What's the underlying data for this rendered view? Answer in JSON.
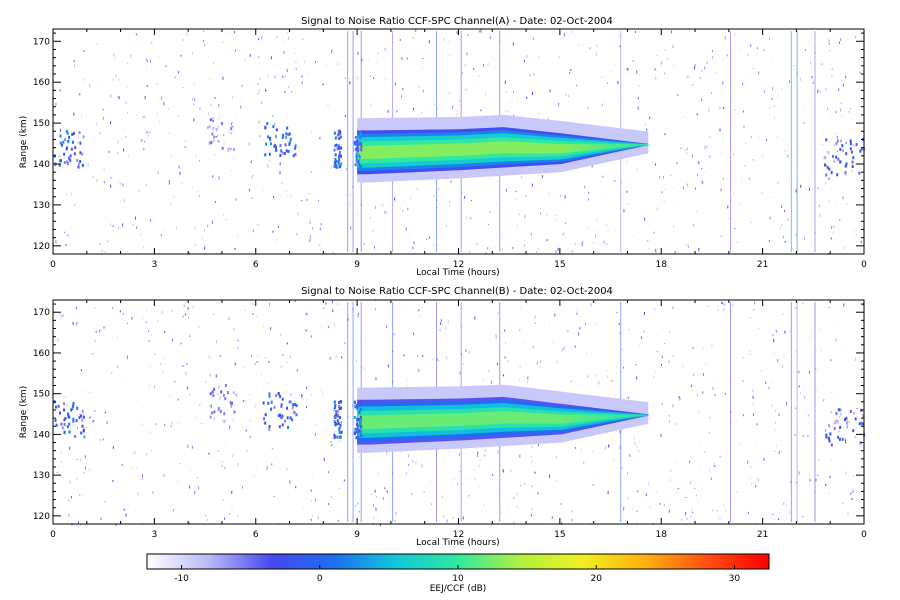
{
  "chart_data": [
    {
      "type": "heatmap",
      "title": "Signal to Noise Ratio CCF-SPC Channel(A) - Date: 02-Oct-2004",
      "xlabel": "Local Time (hours)",
      "ylabel": "Range (km)",
      "xlim": [
        0,
        24
      ],
      "ylim": [
        118,
        173
      ],
      "x_ticks": [
        "0",
        "3",
        "6",
        "9",
        "12",
        "15",
        "18",
        "21",
        "0"
      ],
      "x_tick_values": [
        0,
        3,
        6,
        9,
        12,
        15,
        18,
        21,
        24
      ],
      "y_ticks": [
        "120",
        "130",
        "140",
        "150",
        "160",
        "170"
      ],
      "y_tick_values": [
        120,
        130,
        140,
        150,
        160,
        170
      ],
      "features": [
        {
          "kind": "main_echo",
          "t_start": 9.0,
          "t_end": 17.6,
          "range_center": 143,
          "peak_snr_db": 17,
          "upper_edge_km": [
            [
              9.3,
              148.2
            ],
            [
              12,
              148.5
            ],
            [
              13.3,
              149
            ],
            [
              15,
              147.5
            ],
            [
              17.5,
              145
            ]
          ],
          "lower_edge_km": [
            [
              9.3,
              137.5
            ],
            [
              12,
              138.5
            ],
            [
              15,
              140
            ],
            [
              17.5,
              144.5
            ]
          ]
        },
        {
          "kind": "patch",
          "t_start": 0.0,
          "t_end": 0.9,
          "range_center": 144,
          "peak_snr_db": 3
        },
        {
          "kind": "patch",
          "t_start": 6.2,
          "t_end": 7.2,
          "range_center": 146,
          "peak_snr_db": 3
        },
        {
          "kind": "patch",
          "t_start": 8.3,
          "t_end": 8.5,
          "range_center": 144,
          "peak_snr_db": 4
        },
        {
          "kind": "patch",
          "t_start": 8.9,
          "t_end": 9.1,
          "range_center": 144,
          "peak_snr_db": 4
        },
        {
          "kind": "patch",
          "t_start": 4.6,
          "t_end": 5.4,
          "range_center": 148,
          "peak_snr_db": -4
        },
        {
          "kind": "patch",
          "t_start": 22.8,
          "t_end": 24.0,
          "range_center": 142,
          "peak_snr_db": 0
        }
      ]
    },
    {
      "type": "heatmap",
      "title": "Signal to Noise Ratio CCF-SPC Channel(B) - Date: 02-Oct-2004",
      "xlabel": "Local Time (hours)",
      "ylabel": "Range (km)",
      "xlim": [
        0,
        24
      ],
      "ylim": [
        118,
        173
      ],
      "x_ticks": [
        "0",
        "3",
        "6",
        "9",
        "12",
        "15",
        "18",
        "21",
        "0"
      ],
      "x_tick_values": [
        0,
        3,
        6,
        9,
        12,
        15,
        18,
        21,
        24
      ],
      "y_ticks": [
        "120",
        "130",
        "140",
        "150",
        "160",
        "170"
      ],
      "y_tick_values": [
        120,
        130,
        140,
        150,
        160,
        170
      ],
      "features": [
        {
          "kind": "main_echo",
          "t_start": 9.0,
          "t_end": 17.6,
          "range_center": 143,
          "peak_snr_db": 16,
          "upper_edge_km": [
            [
              9.3,
              148.5
            ],
            [
              12,
              148.8
            ],
            [
              13.3,
              149.2
            ],
            [
              15,
              147.5
            ],
            [
              17.5,
              145
            ]
          ],
          "lower_edge_km": [
            [
              9.3,
              137.5
            ],
            [
              12,
              138.5
            ],
            [
              15,
              140
            ],
            [
              17.5,
              144.5
            ]
          ]
        },
        {
          "kind": "patch",
          "t_start": 0.0,
          "t_end": 0.9,
          "range_center": 144,
          "peak_snr_db": 3
        },
        {
          "kind": "patch",
          "t_start": 6.2,
          "t_end": 7.2,
          "range_center": 146,
          "peak_snr_db": 3
        },
        {
          "kind": "patch",
          "t_start": 8.3,
          "t_end": 8.5,
          "range_center": 144,
          "peak_snr_db": 4
        },
        {
          "kind": "patch",
          "t_start": 8.9,
          "t_end": 9.1,
          "range_center": 144,
          "peak_snr_db": 4
        },
        {
          "kind": "patch",
          "t_start": 4.6,
          "t_end": 5.4,
          "range_center": 148,
          "peak_snr_db": -4
        },
        {
          "kind": "patch",
          "t_start": 22.8,
          "t_end": 24.0,
          "range_center": 142,
          "peak_snr_db": 0
        }
      ]
    }
  ],
  "colorbar": {
    "label": "EEJ/CCF (dB)",
    "range": [
      -12.5,
      32.5
    ],
    "ticks": [
      "-10",
      "0",
      "10",
      "20",
      "30"
    ],
    "tick_values": [
      -10,
      0,
      10,
      20,
      30
    ],
    "colormap": [
      "#ffffff",
      "#b8b8f8",
      "#4848f0",
      "#1e6ef0",
      "#10c8d8",
      "#30e8a0",
      "#b0f040",
      "#f0f020",
      "#ffb010",
      "#ff5010",
      "#ff0000"
    ]
  }
}
